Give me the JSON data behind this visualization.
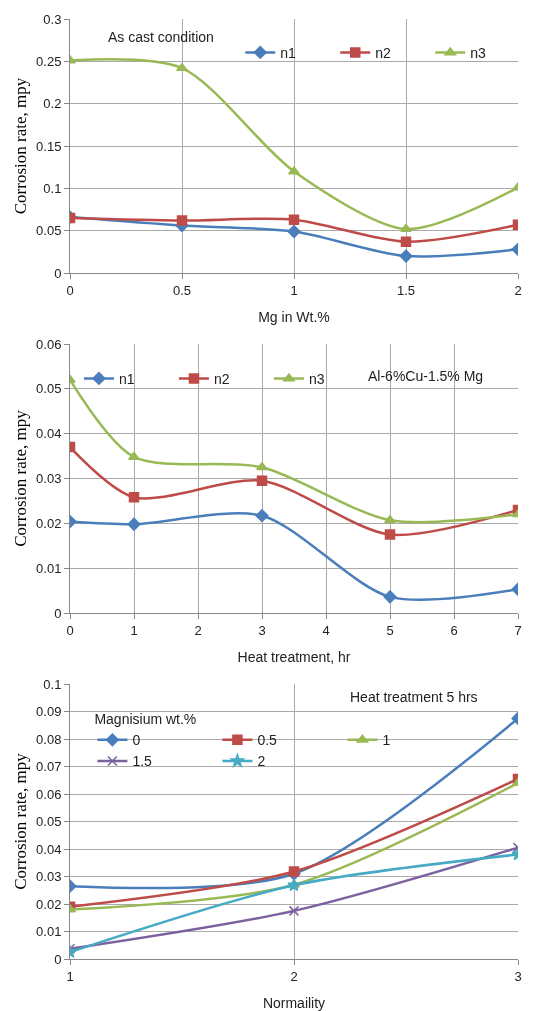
{
  "chart_data": [
    {
      "type": "line",
      "xlabel": "Mg in Wt.%",
      "ylabel": "Corrosion rate, mpy",
      "annotations": [
        "As cast condition"
      ],
      "x": [
        0,
        0.5,
        1,
        1.5,
        2
      ],
      "xlim": [
        0,
        2
      ],
      "xticks": [
        0,
        0.5,
        1,
        1.5,
        2
      ],
      "ylim": [
        0,
        0.3
      ],
      "yticks": [
        0,
        0.05,
        0.1,
        0.15,
        0.2,
        0.25,
        0.3
      ],
      "grid": true,
      "legend": "top right",
      "series": [
        {
          "name": "n1",
          "color": "#4a7ebb",
          "marker": "diamond",
          "values": [
            0.066,
            0.056,
            0.049,
            0.02,
            0.028
          ]
        },
        {
          "name": "n2",
          "color": "#be4b48",
          "marker": "square",
          "values": [
            0.065,
            0.062,
            0.063,
            0.037,
            0.057
          ]
        },
        {
          "name": "n3",
          "color": "#98b954",
          "marker": "triangle",
          "values": [
            0.251,
            0.242,
            0.12,
            0.052,
            0.101
          ]
        }
      ]
    },
    {
      "type": "line",
      "xlabel": "Heat treatment, hr",
      "ylabel": "Corrosion rate, mpy",
      "annotations": [
        "Al-6%Cu-1.5% Mg"
      ],
      "x": [
        0,
        1,
        3,
        5,
        7
      ],
      "xlim": [
        0,
        7
      ],
      "xticks": [
        0,
        1,
        2,
        3,
        4,
        5,
        6,
        7
      ],
      "ylim": [
        0,
        0.06
      ],
      "yticks": [
        0,
        0.01,
        0.02,
        0.03,
        0.04,
        0.05,
        0.06
      ],
      "grid": true,
      "legend": "top left",
      "series": [
        {
          "name": "n1",
          "color": "#4a7ebb",
          "marker": "diamond",
          "values": [
            0.0204,
            0.0198,
            0.0217,
            0.0036,
            0.0053
          ]
        },
        {
          "name": "n2",
          "color": "#be4b48",
          "marker": "square",
          "values": [
            0.037,
            0.0258,
            0.0295,
            0.0175,
            0.023
          ]
        },
        {
          "name": "n3",
          "color": "#98b954",
          "marker": "triangle",
          "values": [
            0.052,
            0.0348,
            0.0325,
            0.0207,
            0.022
          ]
        }
      ]
    },
    {
      "type": "line",
      "xlabel": "Normaility",
      "ylabel": "Corrosion rate, mpy",
      "legend_title": "Magnisium wt.%",
      "annotations": [
        "Heat treatment 5 hrs"
      ],
      "x": [
        1,
        2,
        3
      ],
      "xlim": [
        1,
        3
      ],
      "xticks": [
        1,
        2,
        3
      ],
      "ylim": [
        0,
        0.1
      ],
      "yticks": [
        0,
        0.01,
        0.02,
        0.03,
        0.04,
        0.05,
        0.06,
        0.07,
        0.08,
        0.09,
        0.1
      ],
      "grid": true,
      "legend": "top left",
      "series": [
        {
          "name": "0",
          "color": "#4a7ebb",
          "marker": "diamond",
          "values": [
            0.0265,
            0.031,
            0.0875
          ]
        },
        {
          "name": "0.5",
          "color": "#be4b48",
          "marker": "square",
          "values": [
            0.019,
            0.0318,
            0.0655
          ]
        },
        {
          "name": "1",
          "color": "#98b954",
          "marker": "triangle",
          "values": [
            0.018,
            0.027,
            0.064
          ]
        },
        {
          "name": "1.5",
          "color": "#7d60a0",
          "marker": "cross",
          "values": [
            0.0037,
            0.0175,
            0.0405
          ]
        },
        {
          "name": "2",
          "color": "#46aac5",
          "marker": "star",
          "values": [
            0.0025,
            0.0268,
            0.038
          ]
        }
      ]
    }
  ]
}
